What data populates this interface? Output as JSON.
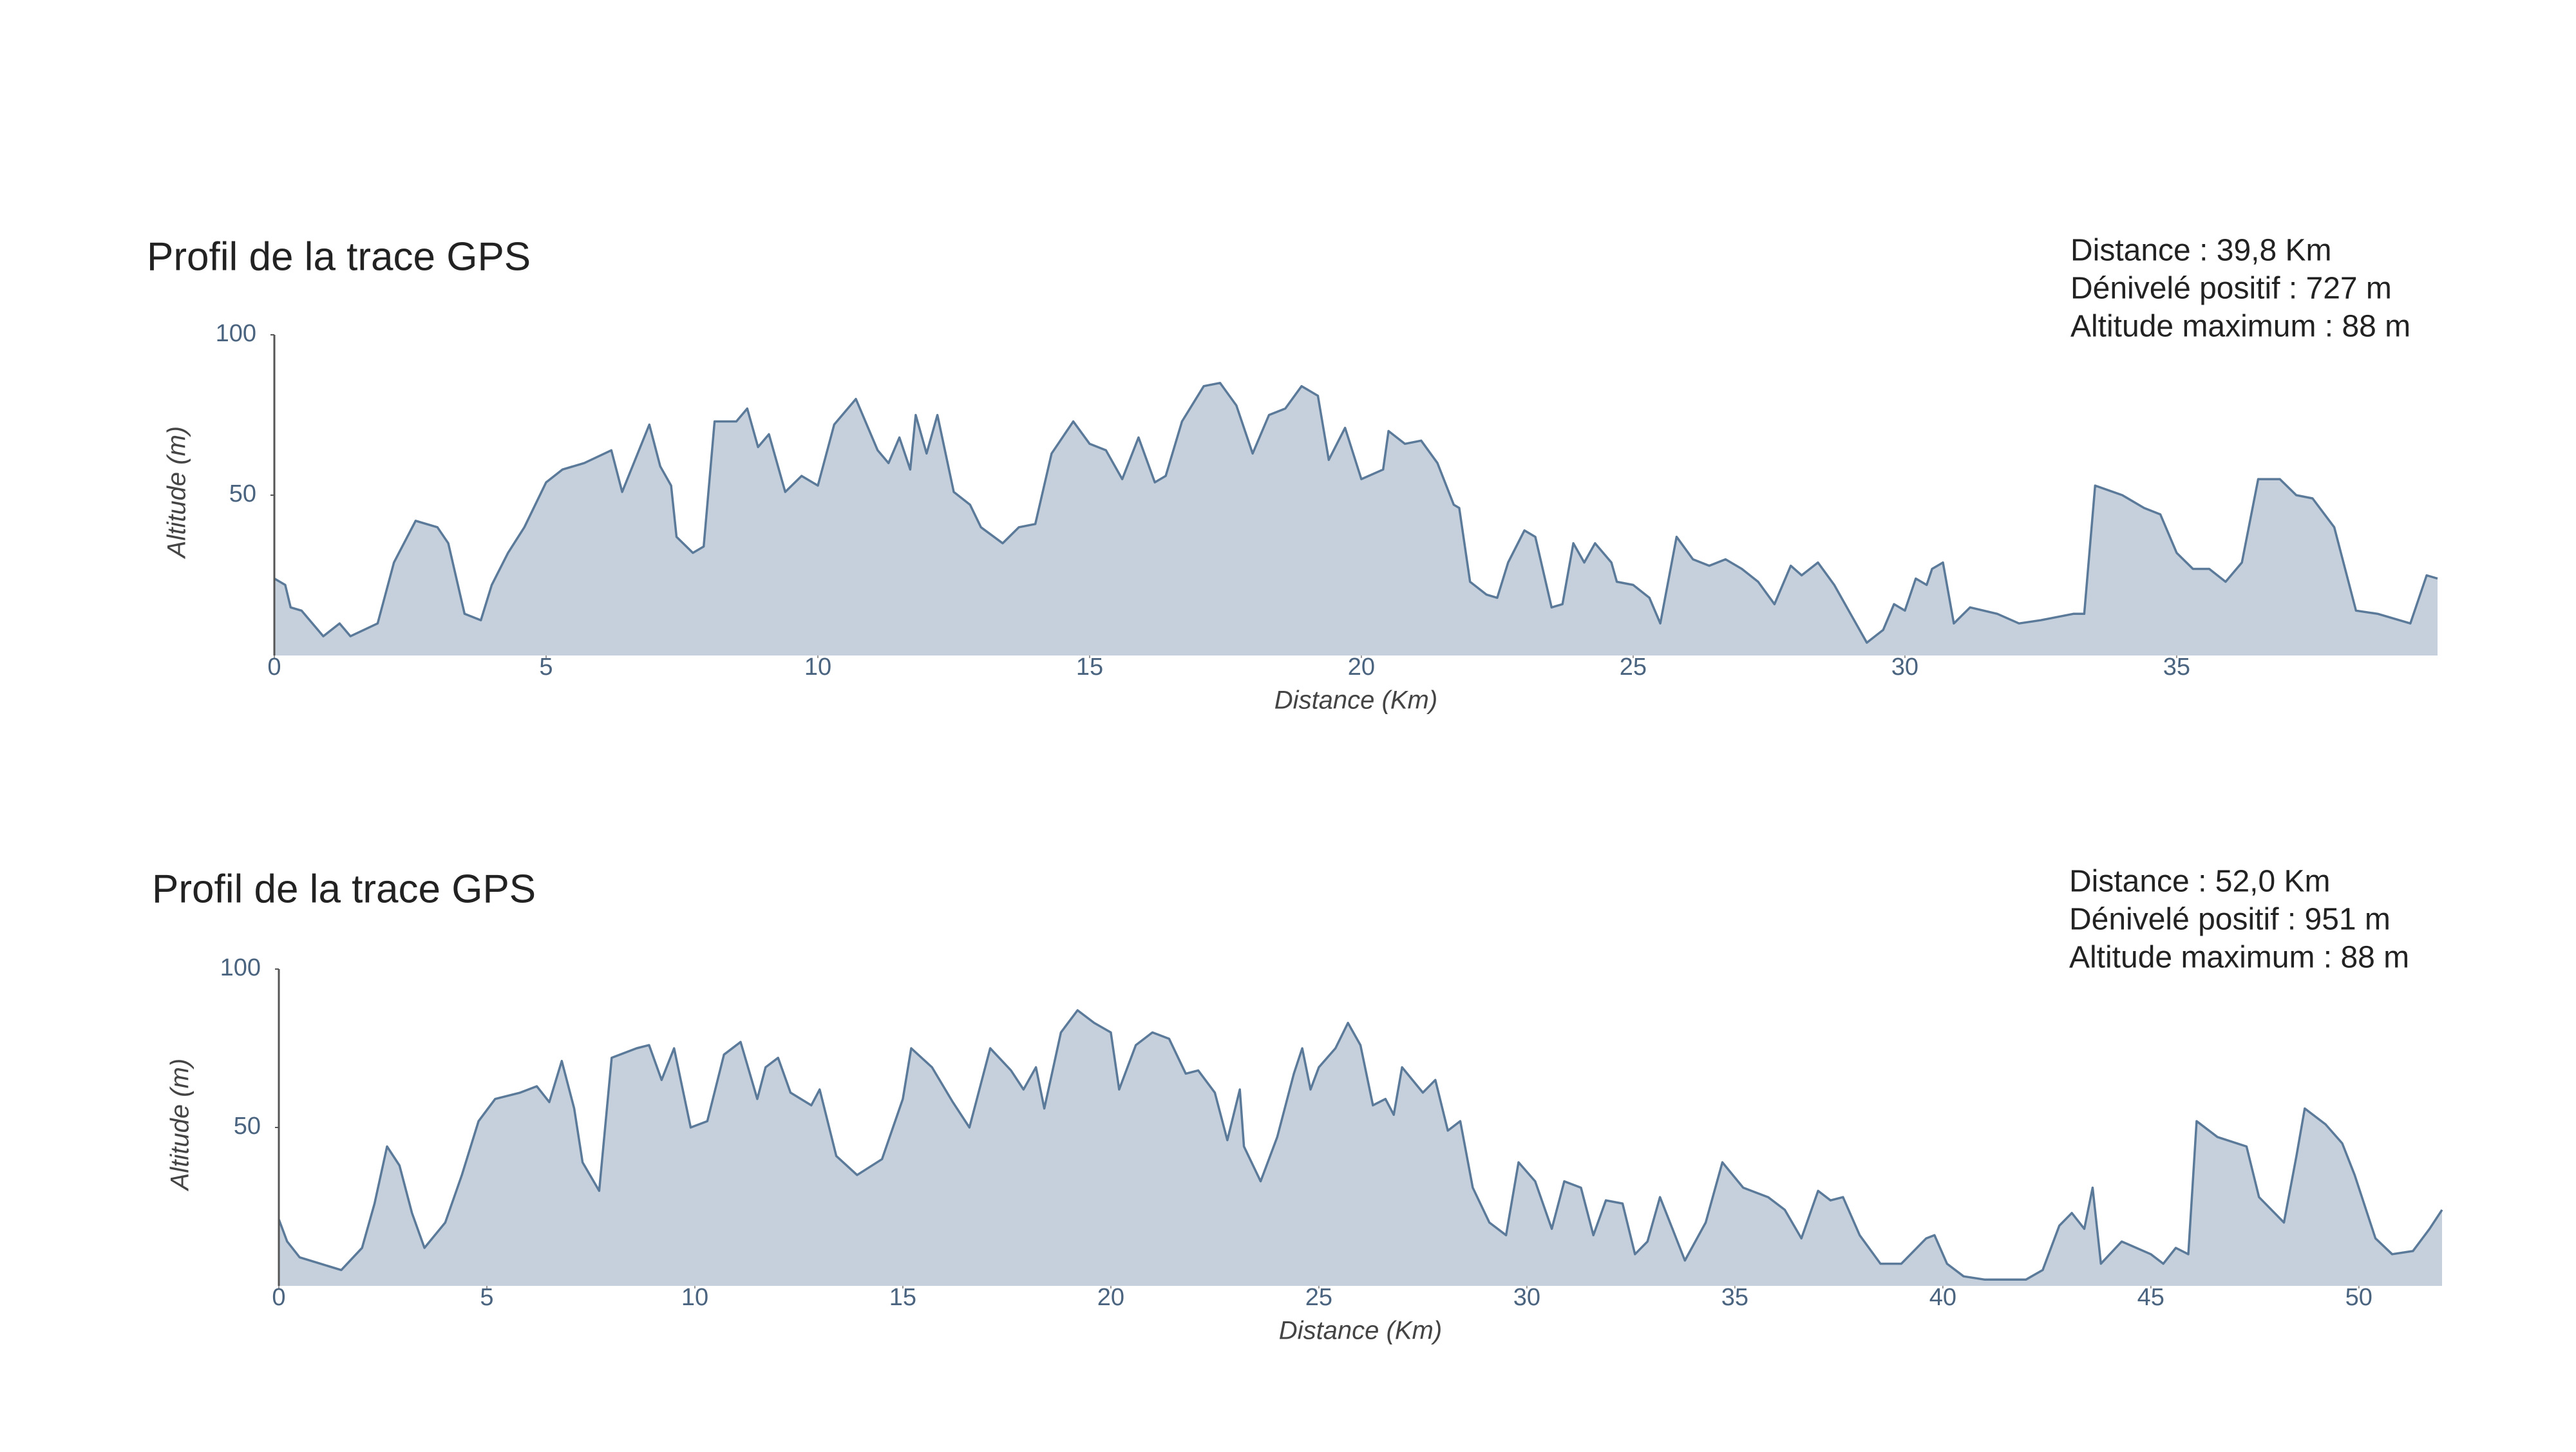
{
  "chart_data": [
    {
      "type": "area",
      "title": "Profil de la trace GPS",
      "stats": [
        "Distance : 39,8 Km",
        "Dénivelé positif : 727 m",
        "Altitude maximum : 88 m"
      ],
      "xlabel": "Distance (Km)",
      "ylabel": "Altitude (m)",
      "x": [
        0,
        0.2,
        0.3,
        0.5,
        0.9,
        1.2,
        1.4,
        1.9,
        2.2,
        2.6,
        3.0,
        3.2,
        3.5,
        3.8,
        4.0,
        4.3,
        4.6,
        5.0,
        5.3,
        5.7,
        6.2,
        6.4,
        6.9,
        7.1,
        7.3,
        7.4,
        7.7,
        7.9,
        8.1,
        8.5,
        8.7,
        8.9,
        9.1,
        9.4,
        9.7,
        10.0,
        10.3,
        10.7,
        11.1,
        11.3,
        11.5,
        11.7,
        11.8,
        12.0,
        12.2,
        12.5,
        12.8,
        13.0,
        13.4,
        13.7,
        14.0,
        14.3,
        14.7,
        15.0,
        15.3,
        15.6,
        15.9,
        16.2,
        16.4,
        16.7,
        17.1,
        17.4,
        17.7,
        18.0,
        18.3,
        18.6,
        18.9,
        19.2,
        19.4,
        19.7,
        20.0,
        20.4,
        20.5,
        20.8,
        21.1,
        21.4,
        21.7,
        21.8,
        22.0,
        22.3,
        22.5,
        22.7,
        23.0,
        23.2,
        23.5,
        23.7,
        23.9,
        24.1,
        24.3,
        24.6,
        24.7,
        25.0,
        25.3,
        25.5,
        25.8,
        26.1,
        26.4,
        26.7,
        27.0,
        27.3,
        27.6,
        27.9,
        28.1,
        28.4,
        28.7,
        29.0,
        29.3,
        29.6,
        29.8,
        30.0,
        30.2,
        30.4,
        30.5,
        30.7,
        30.9,
        31.2,
        31.7,
        32.1,
        32.5,
        33.1,
        33.3,
        33.5,
        34.0,
        34.4,
        34.7,
        35.0,
        35.3,
        35.6,
        35.9,
        36.2,
        36.5,
        36.9,
        37.2,
        37.5,
        37.9,
        38.3,
        38.7,
        39.3,
        39.6,
        39.8
      ],
      "values": [
        24,
        22,
        15,
        14,
        6,
        10,
        6,
        10,
        29,
        42,
        40,
        35,
        13,
        11,
        22,
        32,
        40,
        54,
        58,
        60,
        64,
        51,
        72,
        59,
        53,
        37,
        32,
        34,
        73,
        73,
        77,
        65,
        69,
        51,
        56,
        53,
        72,
        80,
        64,
        60,
        68,
        58,
        75,
        63,
        75,
        51,
        47,
        40,
        35,
        40,
        41,
        63,
        73,
        66,
        64,
        55,
        68,
        54,
        56,
        73,
        84,
        85,
        78,
        63,
        75,
        77,
        84,
        81,
        61,
        71,
        55,
        58,
        70,
        66,
        67,
        60,
        47,
        46,
        23,
        19,
        18,
        29,
        39,
        37,
        15,
        16,
        35,
        29,
        35,
        29,
        23,
        22,
        18,
        10,
        37,
        30,
        28,
        30,
        27,
        23,
        16,
        28,
        25,
        29,
        22,
        13,
        4,
        8,
        16,
        14,
        24,
        22,
        27,
        29,
        10,
        15,
        13,
        10,
        11,
        13,
        13,
        53,
        50,
        46,
        44,
        32,
        27,
        27,
        23,
        29,
        55,
        55,
        50,
        49,
        40,
        14,
        13,
        10,
        25,
        24
      ],
      "xlim": [
        0,
        39.8
      ],
      "ylim": [
        0,
        100
      ],
      "xticks": [
        0,
        5,
        10,
        15,
        20,
        25,
        30,
        35
      ],
      "yticks": [
        50,
        100
      ],
      "color": "#5b7a99",
      "fill": "#c5d0dc"
    },
    {
      "type": "area",
      "title": "Profil de la trace GPS",
      "stats": [
        "Distance : 52,0 Km",
        "Dénivelé positif : 951 m",
        "Altitude maximum : 88 m"
      ],
      "xlabel": "Distance (Km)",
      "ylabel": "Altitude (m)",
      "x": [
        0,
        0.2,
        0.5,
        1.0,
        1.5,
        2.0,
        2.3,
        2.6,
        2.9,
        3.2,
        3.5,
        4.0,
        4.4,
        4.8,
        5.2,
        5.8,
        6.2,
        6.5,
        6.8,
        7.1,
        7.3,
        7.7,
        8.0,
        8.6,
        8.9,
        9.2,
        9.5,
        9.9,
        10.3,
        10.7,
        11.1,
        11.5,
        11.7,
        12.0,
        12.3,
        12.8,
        13.0,
        13.4,
        13.9,
        14.5,
        15.0,
        15.2,
        15.7,
        16.2,
        16.6,
        17.1,
        17.6,
        17.9,
        18.2,
        18.4,
        18.8,
        19.2,
        19.6,
        20.0,
        20.2,
        20.6,
        21.0,
        21.4,
        21.8,
        22.1,
        22.5,
        22.8,
        23.1,
        23.2,
        23.6,
        24.0,
        24.4,
        24.6,
        24.8,
        25.0,
        25.4,
        25.7,
        26.0,
        26.3,
        26.6,
        26.8,
        27.0,
        27.5,
        27.8,
        28.1,
        28.4,
        28.7,
        29.1,
        29.5,
        29.8,
        30.2,
        30.6,
        30.9,
        31.3,
        31.6,
        31.9,
        32.3,
        32.6,
        32.9,
        33.2,
        33.5,
        33.8,
        34.3,
        34.7,
        35.2,
        35.8,
        36.2,
        36.6,
        37.0,
        37.3,
        37.6,
        38.0,
        38.5,
        39.0,
        39.6,
        39.8,
        40.1,
        40.5,
        41.0,
        42.0,
        42.4,
        42.8,
        43.1,
        43.4,
        43.6,
        43.8,
        44.3,
        45.0,
        45.3,
        45.6,
        45.9,
        46.1,
        46.6,
        47.3,
        47.6,
        48.2,
        48.5,
        48.7,
        49.2,
        49.6,
        49.9,
        50.4,
        50.8,
        51.3,
        51.7,
        52.0
      ],
      "values": [
        21,
        14,
        9,
        7,
        5,
        12,
        26,
        44,
        38,
        23,
        12,
        20,
        35,
        52,
        59,
        61,
        63,
        58,
        71,
        56,
        39,
        30,
        72,
        75,
        76,
        65,
        75,
        50,
        52,
        73,
        77,
        59,
        69,
        72,
        61,
        57,
        62,
        41,
        35,
        40,
        59,
        75,
        69,
        58,
        50,
        75,
        68,
        62,
        69,
        56,
        80,
        87,
        83,
        80,
        62,
        76,
        80,
        78,
        67,
        68,
        61,
        46,
        62,
        44,
        33,
        47,
        67,
        75,
        62,
        69,
        75,
        83,
        76,
        57,
        59,
        54,
        69,
        61,
        65,
        49,
        52,
        31,
        20,
        16,
        39,
        33,
        18,
        33,
        31,
        16,
        27,
        26,
        10,
        14,
        28,
        18,
        8,
        20,
        39,
        31,
        28,
        24,
        15,
        30,
        27,
        28,
        16,
        7,
        7,
        15,
        16,
        7,
        3,
        2,
        2,
        5,
        19,
        23,
        18,
        31,
        7,
        14,
        10,
        7,
        12,
        10,
        52,
        47,
        44,
        28,
        20,
        41,
        56,
        51,
        45,
        35,
        15,
        10,
        11,
        18,
        24
      ],
      "xlim": [
        0,
        52.0
      ],
      "ylim": [
        0,
        100
      ],
      "xticks": [
        0,
        5,
        10,
        15,
        20,
        25,
        30,
        35,
        40,
        45,
        50
      ],
      "yticks": [
        50,
        100
      ],
      "color": "#5b7a99",
      "fill": "#c5d0dc"
    }
  ]
}
